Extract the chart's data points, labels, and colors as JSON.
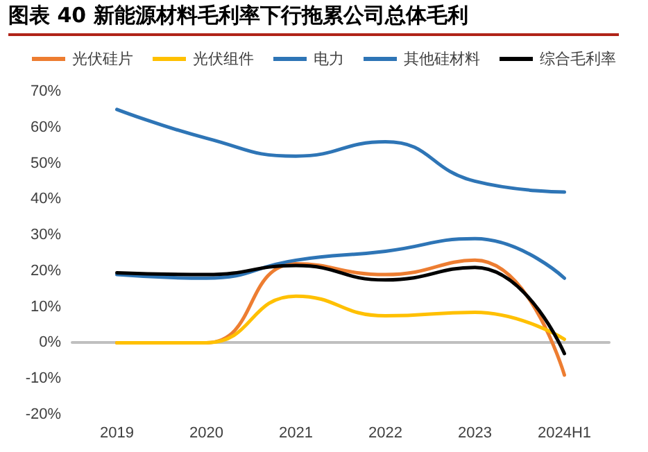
{
  "chart_data": {
    "type": "line",
    "title": "图表 40 新能源材料毛利率下行拖累公司总体毛利",
    "categories": [
      "2019",
      "2020",
      "2021",
      "2022",
      "2023",
      "2024H1"
    ],
    "series": [
      {
        "name": "光伏硅片",
        "color": "#ed7d31",
        "values": [
          0,
          0,
          22,
          19,
          23,
          -9
        ]
      },
      {
        "name": "光伏组件",
        "color": "#ffc000",
        "values": [
          0,
          0,
          13,
          7.5,
          8.5,
          1
        ]
      },
      {
        "name": "电力",
        "color": "#2e75b6",
        "values": [
          65,
          57,
          52,
          56,
          45,
          42
        ]
      },
      {
        "name": "其他硅材料",
        "color": "#2e75b6",
        "values": [
          19,
          18,
          23,
          25.5,
          29,
          18
        ]
      },
      {
        "name": "综合毛利率",
        "color": "#000000",
        "values": [
          19.5,
          19,
          21.5,
          17.5,
          21,
          -3
        ]
      }
    ],
    "ylim": [
      -20,
      70
    ],
    "yticks": [
      {
        "value": -20,
        "label": "-20%"
      },
      {
        "value": -10,
        "label": "-10%"
      },
      {
        "value": 0,
        "label": "0%"
      },
      {
        "value": 10,
        "label": "10%"
      },
      {
        "value": 20,
        "label": "20%"
      },
      {
        "value": 30,
        "label": "30%"
      },
      {
        "value": 40,
        "label": "40%"
      },
      {
        "value": 50,
        "label": "50%"
      },
      {
        "value": 60,
        "label": "60%"
      },
      {
        "value": 70,
        "label": "70%"
      }
    ],
    "legend": "top",
    "marker": "none",
    "line_style": "solid"
  }
}
